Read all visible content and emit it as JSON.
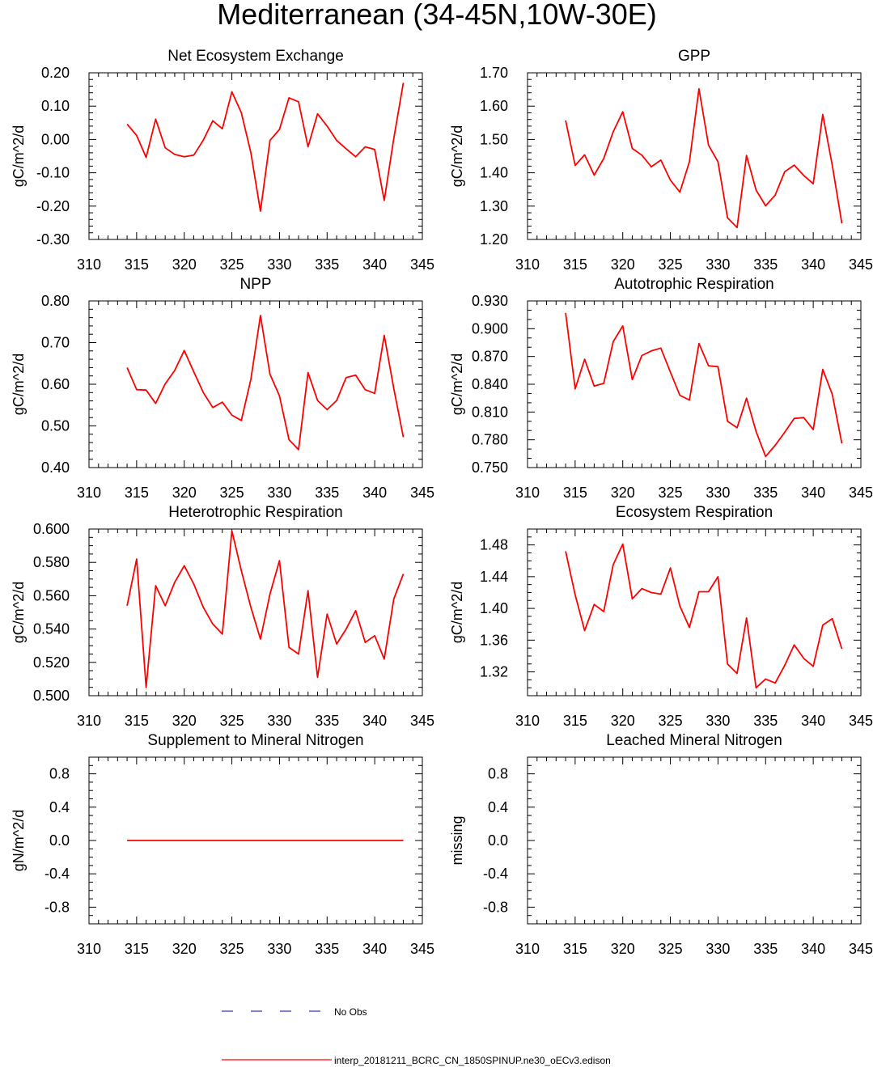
{
  "figure": {
    "title": "Mediterranean (34-45N,10W-30E)",
    "legend": [
      {
        "label": "No Obs",
        "color": "#3333cc",
        "dash": true
      },
      {
        "label": "interp_20181211_BCRC_CN_1850SPINUP.ne30_oECv3.edison",
        "color": "#ff0000",
        "dash": false
      }
    ]
  },
  "chart_data": [
    {
      "type": "line",
      "title": "Net Ecosystem Exchange",
      "xlabel": "",
      "ylabel": "gC/m^2/d",
      "xlim": [
        310,
        345
      ],
      "ylim": [
        -0.3,
        0.2
      ],
      "xticks": [
        310,
        315,
        320,
        325,
        330,
        335,
        340,
        345
      ],
      "yticks": [
        -0.3,
        -0.2,
        -0.1,
        0.0,
        0.1,
        0.2
      ],
      "ytick_labels": [
        "-0.30",
        "-0.20",
        "-0.10",
        "0.00",
        "0.10",
        "0.20"
      ],
      "yminor": 4,
      "series": [
        {
          "name": "interp_20181211_BCRC_CN_1850SPINUP.ne30_oECv3.edison",
          "color": "#ff0000",
          "x": [
            314,
            315,
            316,
            317,
            318,
            319,
            320,
            321,
            322,
            323,
            324,
            325,
            326,
            327,
            328,
            329,
            330,
            331,
            332,
            333,
            334,
            335,
            336,
            337,
            338,
            339,
            340,
            341,
            342,
            343
          ],
          "y": [
            0.046,
            0.012,
            -0.054,
            0.061,
            -0.025,
            -0.045,
            -0.052,
            -0.047,
            -0.002,
            0.056,
            0.032,
            0.143,
            0.08,
            -0.04,
            -0.215,
            -0.003,
            0.03,
            0.125,
            0.113,
            -0.022,
            0.077,
            0.04,
            -0.003,
            -0.028,
            -0.052,
            -0.022,
            -0.03,
            -0.183,
            0.003,
            0.17
          ]
        }
      ]
    },
    {
      "type": "line",
      "title": "GPP",
      "xlabel": "",
      "ylabel": "gC/m^2/d",
      "xlim": [
        310,
        345
      ],
      "ylim": [
        1.2,
        1.7
      ],
      "xticks": [
        310,
        315,
        320,
        325,
        330,
        335,
        340,
        345
      ],
      "yticks": [
        1.2,
        1.3,
        1.4,
        1.5,
        1.6,
        1.7
      ],
      "ytick_labels": [
        "1.20",
        "1.30",
        "1.40",
        "1.50",
        "1.60",
        "1.70"
      ],
      "yminor": 4,
      "series": [
        {
          "name": "interp_20181211_BCRC_CN_1850SPINUP.ne30_oECv3.edison",
          "color": "#ff0000",
          "x": [
            314,
            315,
            316,
            317,
            318,
            319,
            320,
            321,
            322,
            323,
            324,
            325,
            326,
            327,
            328,
            329,
            330,
            331,
            332,
            333,
            334,
            335,
            336,
            337,
            338,
            339,
            340,
            341,
            342,
            343
          ],
          "y": [
            1.557,
            1.422,
            1.454,
            1.393,
            1.443,
            1.523,
            1.583,
            1.473,
            1.453,
            1.418,
            1.438,
            1.378,
            1.342,
            1.433,
            1.652,
            1.483,
            1.433,
            1.265,
            1.236,
            1.452,
            1.348,
            1.301,
            1.333,
            1.403,
            1.423,
            1.392,
            1.367,
            1.575,
            1.422,
            1.248
          ]
        }
      ]
    },
    {
      "type": "line",
      "title": "NPP",
      "xlabel": "",
      "ylabel": "gC/m^2/d",
      "xlim": [
        310,
        345
      ],
      "ylim": [
        0.4,
        0.8
      ],
      "xticks": [
        310,
        315,
        320,
        325,
        330,
        335,
        340,
        345
      ],
      "yticks": [
        0.4,
        0.5,
        0.6,
        0.7,
        0.8
      ],
      "ytick_labels": [
        "0.40",
        "0.50",
        "0.60",
        "0.70",
        "0.80"
      ],
      "yminor": 4,
      "series": [
        {
          "name": "interp_20181211_BCRC_CN_1850SPINUP.ne30_oECv3.edison",
          "color": "#ff0000",
          "x": [
            314,
            315,
            316,
            317,
            318,
            319,
            320,
            321,
            322,
            323,
            324,
            325,
            326,
            327,
            328,
            329,
            330,
            331,
            332,
            333,
            334,
            335,
            336,
            337,
            338,
            339,
            340,
            341,
            342,
            343
          ],
          "y": [
            0.64,
            0.587,
            0.586,
            0.554,
            0.601,
            0.633,
            0.681,
            0.63,
            0.58,
            0.544,
            0.557,
            0.526,
            0.513,
            0.612,
            0.765,
            0.624,
            0.572,
            0.467,
            0.443,
            0.628,
            0.561,
            0.539,
            0.561,
            0.616,
            0.622,
            0.587,
            0.578,
            0.717,
            0.59,
            0.473
          ]
        }
      ]
    },
    {
      "type": "line",
      "title": "Autotrophic Respiration",
      "xlabel": "",
      "ylabel": "gC/m^2/d",
      "xlim": [
        310,
        345
      ],
      "ylim": [
        0.75,
        0.93
      ],
      "xticks": [
        310,
        315,
        320,
        325,
        330,
        335,
        340,
        345
      ],
      "yticks": [
        0.75,
        0.78,
        0.81,
        0.84,
        0.87,
        0.9,
        0.93
      ],
      "ytick_labels": [
        "0.750",
        "0.780",
        "0.810",
        "0.840",
        "0.870",
        "0.900",
        "0.930"
      ],
      "yminor": 2,
      "series": [
        {
          "name": "interp_20181211_BCRC_CN_1850SPINUP.ne30_oECv3.edison",
          "color": "#ff0000",
          "x": [
            314,
            315,
            316,
            317,
            318,
            319,
            320,
            321,
            322,
            323,
            324,
            325,
            326,
            327,
            328,
            329,
            330,
            331,
            332,
            333,
            334,
            335,
            336,
            337,
            338,
            339,
            340,
            341,
            342,
            343
          ],
          "y": [
            0.917,
            0.835,
            0.867,
            0.838,
            0.841,
            0.886,
            0.903,
            0.845,
            0.871,
            0.876,
            0.879,
            0.853,
            0.828,
            0.823,
            0.884,
            0.86,
            0.859,
            0.8,
            0.793,
            0.825,
            0.789,
            0.762,
            0.774,
            0.788,
            0.803,
            0.804,
            0.791,
            0.856,
            0.829,
            0.776
          ]
        }
      ]
    },
    {
      "type": "line",
      "title": "Heterotrophic Respiration",
      "xlabel": "",
      "ylabel": "gC/m^2/d",
      "xlim": [
        310,
        345
      ],
      "ylim": [
        0.5,
        0.6
      ],
      "xticks": [
        310,
        315,
        320,
        325,
        330,
        335,
        340,
        345
      ],
      "yticks": [
        0.5,
        0.52,
        0.54,
        0.56,
        0.58,
        0.6
      ],
      "ytick_labels": [
        "0.500",
        "0.520",
        "0.540",
        "0.560",
        "0.580",
        "0.600"
      ],
      "yminor": 3,
      "series": [
        {
          "name": "interp_20181211_BCRC_CN_1850SPINUP.ne30_oECv3.edison",
          "color": "#ff0000",
          "x": [
            314,
            315,
            316,
            317,
            318,
            319,
            320,
            321,
            322,
            323,
            324,
            325,
            326,
            327,
            328,
            329,
            330,
            331,
            332,
            333,
            334,
            335,
            336,
            337,
            338,
            339,
            340,
            341,
            342,
            343
          ],
          "y": [
            0.554,
            0.582,
            0.505,
            0.566,
            0.554,
            0.568,
            0.578,
            0.567,
            0.553,
            0.543,
            0.537,
            0.599,
            0.575,
            0.553,
            0.534,
            0.561,
            0.581,
            0.529,
            0.525,
            0.563,
            0.511,
            0.549,
            0.531,
            0.54,
            0.551,
            0.532,
            0.536,
            0.522,
            0.558,
            0.573
          ]
        }
      ]
    },
    {
      "type": "line",
      "title": "Ecosystem Respiration",
      "xlabel": "",
      "ylabel": "gC/m^2/d",
      "xlim": [
        310,
        345
      ],
      "ylim": [
        1.29,
        1.5
      ],
      "xticks": [
        310,
        315,
        320,
        325,
        330,
        335,
        340,
        345
      ],
      "yticks": [
        1.32,
        1.36,
        1.4,
        1.44,
        1.48
      ],
      "ytick_labels": [
        "1.32",
        "1.36",
        "1.40",
        "1.44",
        "1.48"
      ],
      "yminor": 3,
      "series": [
        {
          "name": "interp_20181211_BCRC_CN_1850SPINUP.ne30_oECv3.edison",
          "color": "#ff0000",
          "x": [
            314,
            315,
            316,
            317,
            318,
            319,
            320,
            321,
            322,
            323,
            324,
            325,
            326,
            327,
            328,
            329,
            330,
            331,
            332,
            333,
            334,
            335,
            336,
            337,
            338,
            339,
            340,
            341,
            342,
            343
          ],
          "y": [
            1.472,
            1.417,
            1.372,
            1.405,
            1.396,
            1.455,
            1.481,
            1.412,
            1.425,
            1.42,
            1.418,
            1.451,
            1.403,
            1.376,
            1.421,
            1.421,
            1.44,
            1.33,
            1.318,
            1.388,
            1.3,
            1.311,
            1.306,
            1.328,
            1.354,
            1.337,
            1.327,
            1.379,
            1.387,
            1.349
          ]
        }
      ]
    },
    {
      "type": "line",
      "title": "Supplement to Mineral Nitrogen",
      "xlabel": "",
      "ylabel": "gN/m^2/d",
      "xlim": [
        310,
        345
      ],
      "ylim": [
        -1.0,
        1.0
      ],
      "xticks": [
        310,
        315,
        320,
        325,
        330,
        335,
        340,
        345
      ],
      "yticks": [
        -0.8,
        -0.4,
        0.0,
        0.4,
        0.8
      ],
      "ytick_labels": [
        "-0.8",
        "-0.4",
        "0.0",
        "0.4",
        "0.8"
      ],
      "yminor": 3,
      "series": [
        {
          "name": "interp_20181211_BCRC_CN_1850SPINUP.ne30_oECv3.edison",
          "color": "#ff0000",
          "x": [
            314,
            343
          ],
          "y": [
            0.0,
            0.0
          ]
        }
      ]
    },
    {
      "type": "line",
      "title": "Leached Mineral Nitrogen",
      "xlabel": "",
      "ylabel": "missing",
      "xlim": [
        310,
        345
      ],
      "ylim": [
        -1.0,
        1.0
      ],
      "xticks": [
        310,
        315,
        320,
        325,
        330,
        335,
        340,
        345
      ],
      "yticks": [
        -0.8,
        -0.4,
        0.0,
        0.4,
        0.8
      ],
      "ytick_labels": [
        "-0.8",
        "-0.4",
        "0.0",
        "0.4",
        "0.8"
      ],
      "yminor": 3,
      "series": []
    }
  ]
}
